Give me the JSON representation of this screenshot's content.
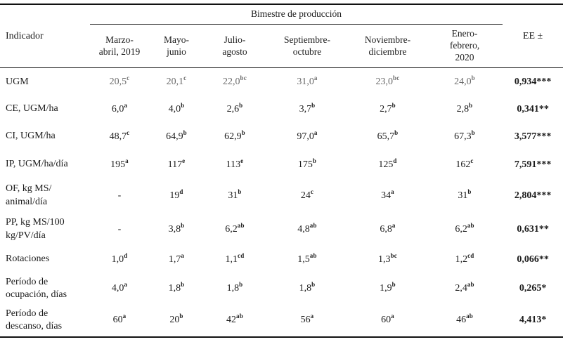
{
  "table": {
    "indicator_header": "Indicador",
    "group_header": "Bimestre de producción",
    "ee_header": "EE ±",
    "columns": [
      {
        "label": "Marzo-abril, 2019",
        "lines": [
          "Marzo-",
          "abril, 2019"
        ]
      },
      {
        "label": "Mayo-junio",
        "lines": [
          "Mayo-",
          "junio"
        ]
      },
      {
        "label": "Julio-agosto",
        "lines": [
          "Julio-",
          "agosto"
        ]
      },
      {
        "label": "Septiembre-octubre",
        "lines": [
          "Septiembre-",
          "octubre"
        ]
      },
      {
        "label": "Noviembre-diciembre",
        "lines": [
          "Noviembre-",
          "diciembre"
        ]
      },
      {
        "label": "Enero-febrero, 2020",
        "lines": [
          "Enero-",
          "febrero,",
          "2020"
        ]
      }
    ],
    "colors": {
      "text": "#1c1c1c",
      "muted_value_text": "#6a6a6a",
      "border": "#111111"
    },
    "rows": [
      {
        "label": "UGM",
        "muted": true,
        "cells": [
          {
            "v": "20,5",
            "s": "c"
          },
          {
            "v": "20,1",
            "s": "c"
          },
          {
            "v": "22,0",
            "s": "bc"
          },
          {
            "v": "31,0",
            "s": "a"
          },
          {
            "v": "23,0",
            "s": "bc"
          },
          {
            "v": "24,0",
            "s": "b"
          }
        ],
        "ee": "0,934***"
      },
      {
        "label": "CE, UGM/ha",
        "muted": false,
        "cells": [
          {
            "v": "6,0",
            "s": "a"
          },
          {
            "v": "4,0",
            "s": "b"
          },
          {
            "v": "2,6",
            "s": "b"
          },
          {
            "v": "3,7",
            "s": "b"
          },
          {
            "v": "2,7",
            "s": "b"
          },
          {
            "v": "2,8",
            "s": "b"
          }
        ],
        "ee": "0,341**"
      },
      {
        "label": "CI, UGM/ha",
        "muted": false,
        "cells": [
          {
            "v": "48,7",
            "s": "c"
          },
          {
            "v": "64,9",
            "s": "b"
          },
          {
            "v": "62,9",
            "s": "b"
          },
          {
            "v": "97,0",
            "s": "a"
          },
          {
            "v": "65,7",
            "s": "b"
          },
          {
            "v": "67,3",
            "s": "b"
          }
        ],
        "ee": "3,577***"
      },
      {
        "label": "IP, UGM/ha/día",
        "muted": false,
        "cells": [
          {
            "v": "195",
            "s": "a"
          },
          {
            "v": "117",
            "s": "e"
          },
          {
            "v": "113",
            "s": "e"
          },
          {
            "v": "175",
            "s": "b"
          },
          {
            "v": "125",
            "s": "d"
          },
          {
            "v": "162",
            "s": "c"
          }
        ],
        "ee": "7,591***"
      },
      {
        "label": "OF, kg MS/ animal/día",
        "muted": false,
        "cells": [
          {
            "v": "-",
            "s": ""
          },
          {
            "v": "19",
            "s": "d"
          },
          {
            "v": "31",
            "s": "b"
          },
          {
            "v": "24",
            "s": "c"
          },
          {
            "v": "34",
            "s": "a"
          },
          {
            "v": "31",
            "s": "b"
          }
        ],
        "ee": "2,804***"
      },
      {
        "label": "PP, kg MS/100 kg/PV/día",
        "muted": false,
        "cells": [
          {
            "v": "-",
            "s": ""
          },
          {
            "v": "3,8",
            "s": "b"
          },
          {
            "v": "6,2",
            "s": "ab"
          },
          {
            "v": "4,8",
            "s": "ab"
          },
          {
            "v": "6,8",
            "s": "a"
          },
          {
            "v": "6,2",
            "s": "ab"
          }
        ],
        "ee": "0,631**"
      },
      {
        "label": "Rotaciones",
        "muted": false,
        "cells": [
          {
            "v": "1,0",
            "s": "d"
          },
          {
            "v": "1,7",
            "s": "a"
          },
          {
            "v": "1,1",
            "s": "cd"
          },
          {
            "v": "1,5",
            "s": "ab"
          },
          {
            "v": "1,3",
            "s": "bc"
          },
          {
            "v": "1,2",
            "s": "cd"
          }
        ],
        "ee": "0,066**"
      },
      {
        "label": "Período de ocupación, días",
        "muted": false,
        "cells": [
          {
            "v": "4,0",
            "s": "a"
          },
          {
            "v": "1,8",
            "s": "b"
          },
          {
            "v": "1,8",
            "s": "b"
          },
          {
            "v": "1,8",
            "s": "b"
          },
          {
            "v": "1,9",
            "s": "b"
          },
          {
            "v": "2,4",
            "s": "ab"
          }
        ],
        "ee": "0,265*"
      },
      {
        "label": "Período de descanso, días",
        "muted": false,
        "cells": [
          {
            "v": "60",
            "s": "a"
          },
          {
            "v": "20",
            "s": "b"
          },
          {
            "v": "42",
            "s": "ab"
          },
          {
            "v": "56",
            "s": "a"
          },
          {
            "v": "60",
            "s": "a"
          },
          {
            "v": "46",
            "s": "ab"
          }
        ],
        "ee": "4,413*"
      }
    ]
  }
}
